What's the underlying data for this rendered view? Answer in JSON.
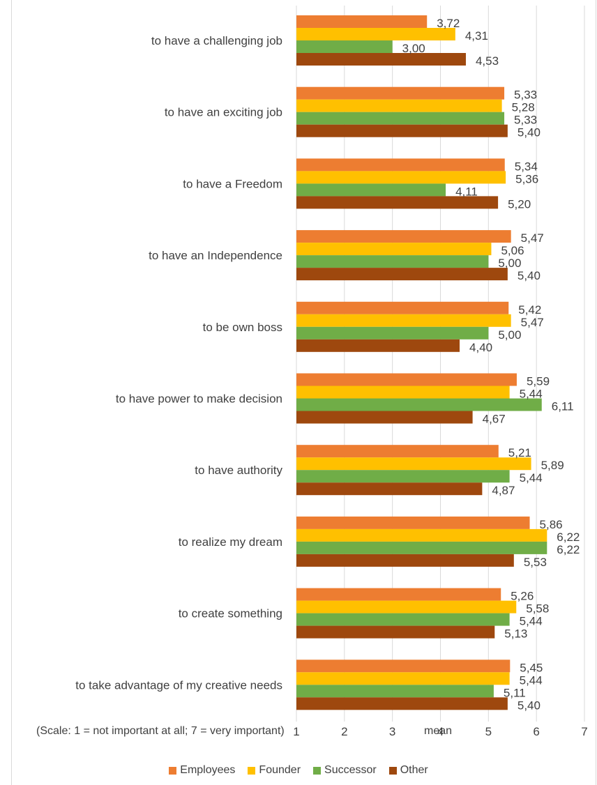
{
  "chart_data": {
    "type": "bar",
    "orientation": "horizontal",
    "categories": [
      "to have  a challenging job",
      "to have an exciting job",
      "to have a Freedom",
      "to  have an Independence",
      "to be own boss",
      "to  have power to make decision",
      "to have authority",
      "to realize my dream",
      "to create something",
      "to take advantage of my creative needs"
    ],
    "series": [
      {
        "name": "Employees",
        "color": "#ED7D31",
        "values": [
          3.72,
          5.33,
          5.34,
          5.47,
          5.42,
          5.59,
          5.21,
          5.86,
          5.26,
          5.45
        ],
        "labels": [
          "3,72",
          "5,33",
          "5,34",
          "5,47",
          "5,42",
          "5,59",
          "5,21",
          "5,86",
          "5,26",
          "5,45"
        ]
      },
      {
        "name": "Founder",
        "color": "#FFC000",
        "values": [
          4.31,
          5.28,
          5.36,
          5.06,
          5.47,
          5.44,
          5.89,
          6.22,
          5.58,
          5.44
        ],
        "labels": [
          "4,31",
          "5,28",
          "5,36",
          "5,06",
          "5,47",
          "5,44",
          "5,89",
          "6,22",
          "5,58",
          "5,44"
        ]
      },
      {
        "name": "Successor",
        "color": "#70AD47",
        "values": [
          3.0,
          5.33,
          4.11,
          5.0,
          5.0,
          6.11,
          5.44,
          6.22,
          5.44,
          5.11
        ],
        "labels": [
          "3,00",
          "5,33",
          "4,11",
          "5,00",
          "5,00",
          "6,11",
          "5,44",
          "6,22",
          "5,44",
          "5,11"
        ]
      },
      {
        "name": "Other",
        "color": "#9E480E",
        "values": [
          4.53,
          5.4,
          5.2,
          5.4,
          4.4,
          4.67,
          4.87,
          5.53,
          5.13,
          5.4
        ],
        "labels": [
          "4,53",
          "5,40",
          "5,20",
          "5,40",
          "4,40",
          "4,67",
          "4,87",
          "5,53",
          "5,13",
          "5,40"
        ]
      }
    ],
    "xticks": [
      "1",
      "2",
      "3",
      "4",
      "5",
      "6",
      "7"
    ],
    "xlim": [
      1,
      7
    ],
    "xlabel": "mean",
    "note": "(Scale: 1 = not important at all; 7 = very important)",
    "legend_position": "bottom",
    "grid": "vertical gridlines"
  }
}
